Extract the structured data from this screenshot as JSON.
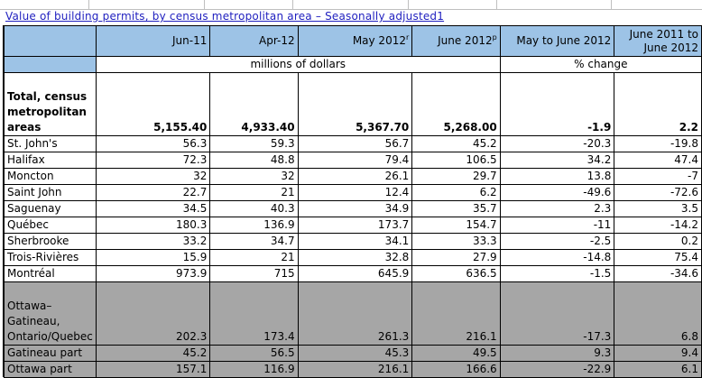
{
  "title": "Value of building permits, by census metropolitan area – Seasonally adjusted1",
  "headers": {
    "col1": "Jun-11",
    "col2": "Apr-12",
    "col3": "May 2012",
    "col3_sup": "r",
    "col4": "June 2012",
    "col4_sup": "p",
    "col5": "May to June 2012",
    "col6": "June 2011 to June 2012"
  },
  "units": {
    "money": "millions of dollars",
    "change": "% change"
  },
  "total_row": {
    "label": "Total, census metropolitan areas",
    "values": [
      "5,155.40",
      "4,933.40",
      "5,367.70",
      "5,268.00",
      "-1.9",
      "2.2"
    ]
  },
  "rows": [
    {
      "label": "St. John's",
      "values": [
        "56.3",
        "59.3",
        "56.7",
        "45.2",
        "-20.3",
        "-19.8"
      ]
    },
    {
      "label": "Halifax",
      "values": [
        "72.3",
        "48.8",
        "79.4",
        "106.5",
        "34.2",
        "47.4"
      ]
    },
    {
      "label": "Moncton",
      "values": [
        "32",
        "32",
        "26.1",
        "29.7",
        "13.8",
        "-7"
      ]
    },
    {
      "label": "Saint John",
      "values": [
        "22.7",
        "21",
        "12.4",
        "6.2",
        "-49.6",
        "-72.6"
      ]
    },
    {
      "label": "Saguenay",
      "values": [
        "34.5",
        "40.3",
        "34.9",
        "35.7",
        "2.3",
        "3.5"
      ]
    },
    {
      "label": "Québec",
      "values": [
        "180.3",
        "136.9",
        "173.7",
        "154.7",
        "-11",
        "-14.2"
      ]
    },
    {
      "label": "Sherbrooke",
      "values": [
        "33.2",
        "34.7",
        "34.1",
        "33.3",
        "-2.5",
        "0.2"
      ]
    },
    {
      "label": "Trois-Rivières",
      "values": [
        "15.9",
        "21",
        "32.8",
        "27.9",
        "-14.8",
        "75.4"
      ]
    },
    {
      "label": "Montréal",
      "values": [
        "973.9",
        "715",
        "645.9",
        "636.5",
        "-1.5",
        "-34.6"
      ]
    }
  ],
  "ottawa_row": {
    "label": "Ottawa–Gatineau, Ontario/Quebec",
    "values": [
      "202.3",
      "173.4",
      "261.3",
      "216.1",
      "-17.3",
      "6.8"
    ]
  },
  "sub_rows": [
    {
      "label": "Gatineau part",
      "values": [
        "45.2",
        "56.5",
        "45.3",
        "49.5",
        "9.3",
        "9.4"
      ]
    },
    {
      "label": "Ottawa part",
      "values": [
        "157.1",
        "116.9",
        "216.1",
        "166.6",
        "-22.9",
        "6.1"
      ]
    }
  ]
}
